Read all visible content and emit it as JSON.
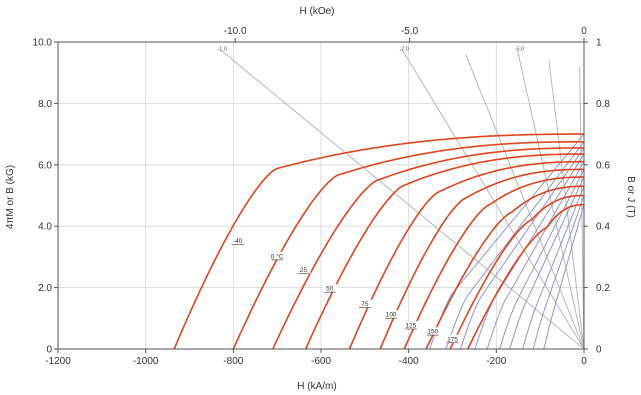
{
  "chart_data": {
    "type": "line",
    "title": "",
    "xlabel_bottom": "H (kA/m)",
    "xlabel_top": "H (kOe)",
    "ylabel_left": "4πM or B (kG)",
    "ylabel_right": "B or J (T)",
    "xlim": [
      -1200,
      0
    ],
    "ylim": [
      0,
      10
    ],
    "x_ticks": [
      "-1200",
      "-1000",
      "-800",
      "-600",
      "-400",
      "-200",
      "0"
    ],
    "x_tick_values": [
      -1200,
      -1000,
      -800,
      -600,
      -400,
      -200,
      0
    ],
    "top_ticks": [
      "-10.0",
      "-5.0",
      "0"
    ],
    "top_tick_values_koe": [
      -10,
      -5,
      0
    ],
    "left_ticks": [
      "0",
      "2.0",
      "4.0",
      "6.0",
      "8.0",
      "10.0"
    ],
    "left_tick_values": [
      0,
      2,
      4,
      6,
      8,
      10
    ],
    "right_ticks": [
      "0",
      "0.2",
      "0.4",
      "0.6",
      "0.8",
      "1"
    ],
    "right_tick_values_t": [
      0,
      0.2,
      0.4,
      0.6,
      0.8,
      1
    ],
    "grid": true,
    "colors": {
      "intrinsic": "#e0451f",
      "normal": "#8a8ad6",
      "loadline": "#b8b8b8",
      "grid": "#d6d6d6"
    },
    "intrinsic_curves": [
      {
        "label": "-40",
        "Br": 7.0,
        "Hk": -700,
        "Hci": -935,
        "label_x": -790,
        "label_y": 3.5
      },
      {
        "label": "0 °C",
        "Br": 6.75,
        "Hk": -560,
        "Hci": -800,
        "label_x": -700,
        "label_y": 3.0
      },
      {
        "label": "25",
        "Br": 6.55,
        "Hk": -470,
        "Hci": -710,
        "label_x": -640,
        "label_y": 2.55
      },
      {
        "label": "50",
        "Br": 6.35,
        "Hk": -410,
        "Hci": -635,
        "label_x": -580,
        "label_y": 1.95
      },
      {
        "label": "75",
        "Br": 6.1,
        "Hk": -330,
        "Hci": -535,
        "label_x": -500,
        "label_y": 1.45
      },
      {
        "label": "100",
        "Br": 5.85,
        "Hk": -270,
        "Hci": -465,
        "label_x": -440,
        "label_y": 1.1
      },
      {
        "label": "125",
        "Br": 5.6,
        "Hk": -215,
        "Hci": -410,
        "label_x": -395,
        "label_y": 0.75
      },
      {
        "label": "150",
        "Br": 5.3,
        "Hk": -165,
        "Hci": -360,
        "label_x": -345,
        "label_y": 0.55
      },
      {
        "label": "175",
        "Br": 5.0,
        "Hk": -120,
        "Hci": -305,
        "label_x": -300,
        "label_y": 0.3
      },
      {
        "label": "",
        "Br": 4.7,
        "Hk": -85,
        "Hci": -265,
        "label_x": null,
        "label_y": null
      }
    ],
    "normal_curves": [
      {
        "Br": 7.0
      },
      {
        "Br": 6.75
      },
      {
        "Br": 6.55
      },
      {
        "Br": 6.35
      },
      {
        "Br": 6.1
      },
      {
        "Br": 5.85
      },
      {
        "Br": 5.6
      },
      {
        "Br": 5.3
      },
      {
        "Br": 5.0
      },
      {
        "Br": 4.7
      }
    ],
    "normal_knee_positions": [
      -300,
      -265,
      -235,
      -205,
      -180,
      -155,
      -135,
      -110,
      -90,
      -70
    ],
    "load_lines": [
      {
        "label": "-1.0",
        "end_h": -830,
        "end_y": 9.75,
        "show_label": true
      },
      {
        "label": "-2.0",
        "end_h": -415,
        "end_y": 9.75,
        "show_label": true
      },
      {
        "label": "-5.0",
        "end_h": -152,
        "end_y": 9.75,
        "show_label": true
      },
      {
        "label": "",
        "end_h": -270,
        "end_y": 9.6,
        "show_label": false
      },
      {
        "label": "",
        "end_h": -80,
        "end_y": 9.4,
        "show_label": false
      },
      {
        "label": "",
        "end_h": -10,
        "end_y": 9.2,
        "show_label": false
      }
    ]
  }
}
